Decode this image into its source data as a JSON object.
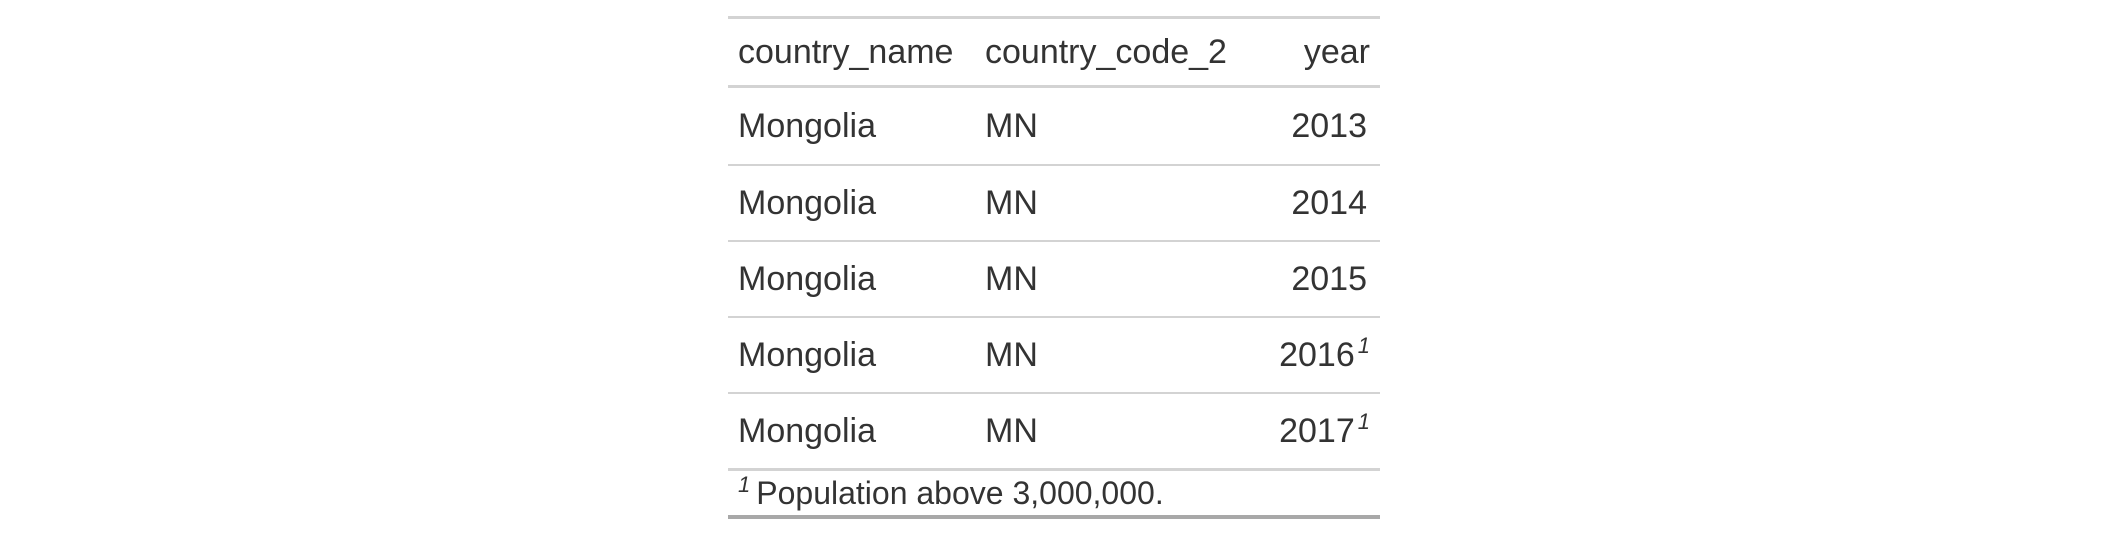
{
  "table": {
    "columns": [
      "country_name",
      "country_code_2",
      "year"
    ],
    "rows": [
      {
        "country_name": "Mongolia",
        "country_code_2": "MN",
        "year": "2013",
        "footnote_mark": ""
      },
      {
        "country_name": "Mongolia",
        "country_code_2": "MN",
        "year": "2014",
        "footnote_mark": ""
      },
      {
        "country_name": "Mongolia",
        "country_code_2": "MN",
        "year": "2015",
        "footnote_mark": ""
      },
      {
        "country_name": "Mongolia",
        "country_code_2": "MN",
        "year": "2016",
        "footnote_mark": "1"
      },
      {
        "country_name": "Mongolia",
        "country_code_2": "MN",
        "year": "2017",
        "footnote_mark": "1"
      }
    ],
    "footnote": {
      "mark": "1",
      "text": "Population above 3,000,000."
    }
  }
}
